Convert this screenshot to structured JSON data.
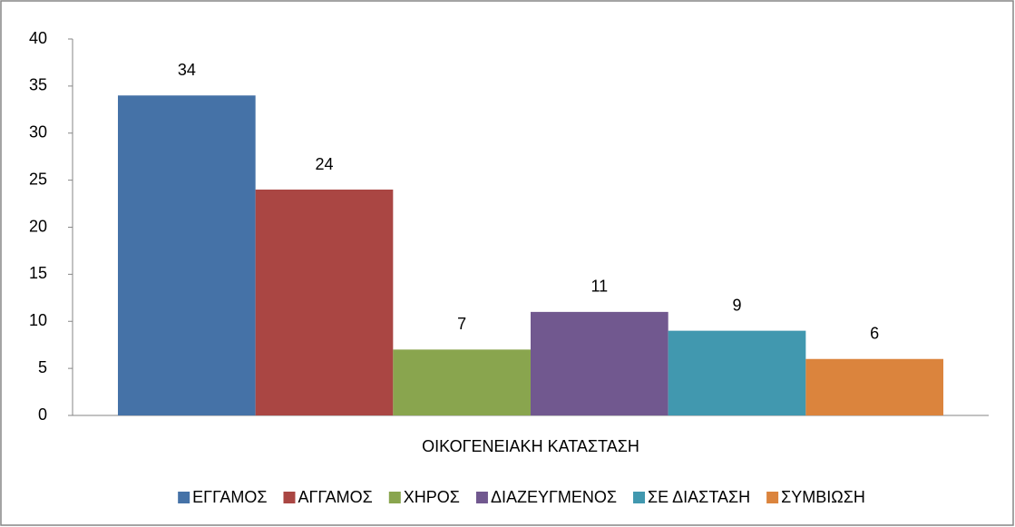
{
  "chart_data": {
    "type": "bar",
    "categories": [
      "ΟΙΚΟΓΕΝΕΙΑΚΗ ΚΑΤΑΣΤΑΣΗ"
    ],
    "series": [
      {
        "name": "ΕΓΓΑΜΟΣ",
        "color": "#4572a7",
        "values": [
          34
        ]
      },
      {
        "name": "ΑΓΓΑΜΟΣ",
        "color": "#aa4643",
        "values": [
          24
        ]
      },
      {
        "name": "ΧΗΡΟΣ",
        "color": "#89a54e",
        "values": [
          7
        ]
      },
      {
        "name": "ΔΙΑΖΕΥΓΜΕΝΟΣ",
        "color": "#71588f",
        "values": [
          11
        ]
      },
      {
        "name": "ΣΕ ΔΙΑΣΤΑΣΗ",
        "color": "#4198af",
        "values": [
          9
        ]
      },
      {
        "name": "ΣΥΜΒΙΩΣΗ",
        "color": "#db843d",
        "values": [
          6
        ]
      }
    ],
    "ylim": [
      0,
      40
    ],
    "yticks": [
      0,
      5,
      10,
      15,
      20,
      25,
      30,
      35,
      40
    ],
    "grid": false,
    "legend": "bottom",
    "data_labels": true
  }
}
